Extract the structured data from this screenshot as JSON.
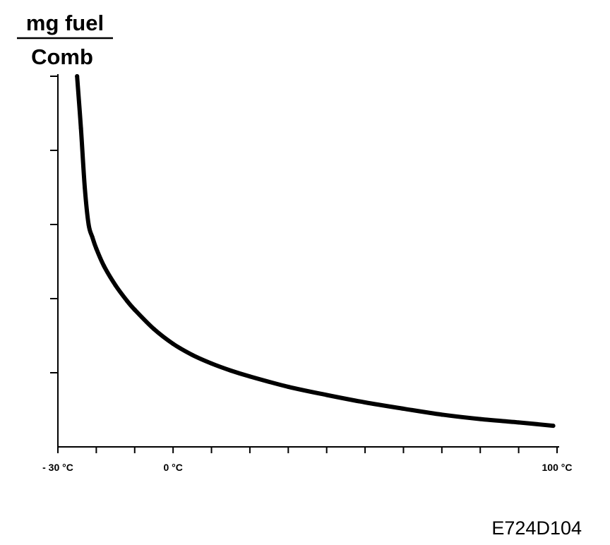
{
  "chart_data": {
    "type": "line",
    "title": "",
    "ylabel": {
      "numerator": "mg fuel",
      "denominator": "Comb"
    },
    "xlabel": "",
    "x_unit": "°C",
    "xlim": [
      -30,
      100
    ],
    "ylim": [
      0,
      100
    ],
    "y_ticks": [
      20,
      40,
      60,
      80,
      100
    ],
    "x_ticks": [
      -30,
      -20,
      -10,
      0,
      10,
      20,
      30,
      40,
      50,
      60,
      70,
      80,
      90,
      100
    ],
    "x_tick_labels": [
      {
        "value": -30,
        "label": "- 30 °C"
      },
      {
        "value": 0,
        "label": "0 °C"
      },
      {
        "value": 100,
        "label": "100 °C"
      }
    ],
    "grid": false,
    "legend": "none",
    "series": [
      {
        "color": "#000000",
        "x": [
          -25,
          -24,
          -23,
          -22,
          -21,
          -20,
          -18,
          -15,
          -12,
          -10,
          -5,
          0,
          5,
          10,
          15,
          20,
          30,
          40,
          50,
          60,
          70,
          80,
          90,
          99
        ],
        "y": [
          100,
          86,
          70,
          60,
          56.5,
          53.5,
          48.8,
          43.6,
          39.4,
          37,
          31.8,
          27.8,
          24.8,
          22.5,
          20.6,
          19,
          16.2,
          14,
          12,
          10.3,
          8.7,
          7.5,
          6.6,
          5.7
        ]
      }
    ]
  },
  "figure_id": "E724D104"
}
